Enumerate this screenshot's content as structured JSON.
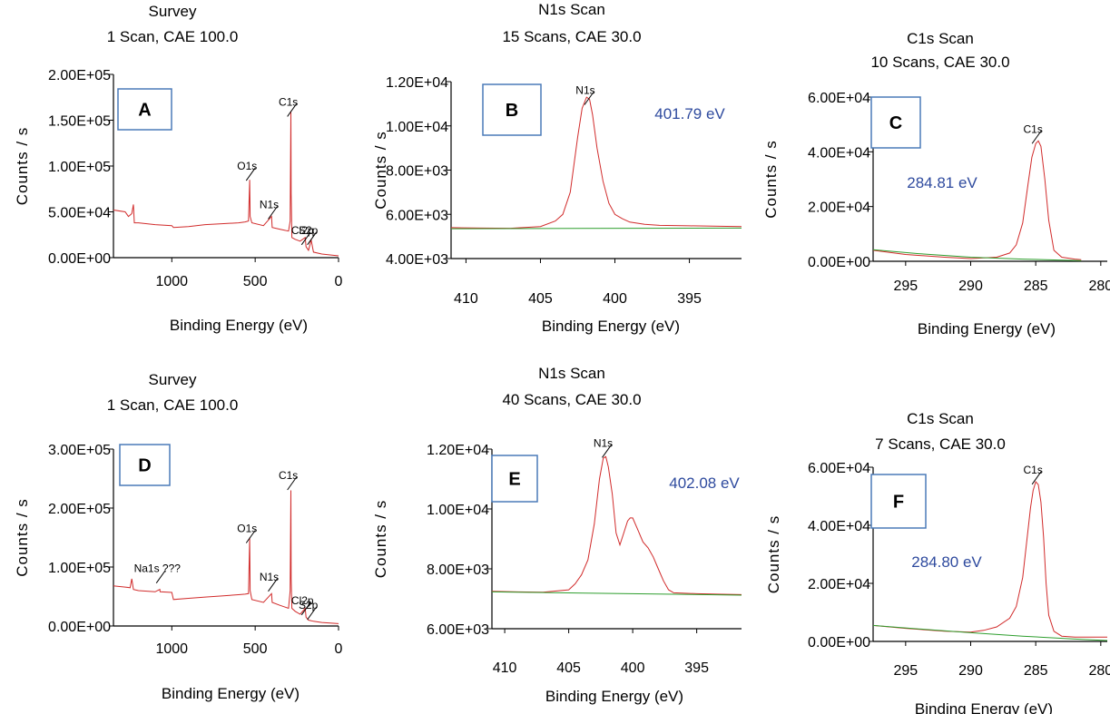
{
  "chart_data": [
    {
      "panel": "A",
      "type": "line",
      "title": "Survey",
      "subtitle": "1 Scan,  CAE 100.0",
      "xlabel": "Binding Energy (eV)",
      "ylabel": "Counts / s",
      "xlim": [
        1350,
        0
      ],
      "ylim": [
        0,
        200000
      ],
      "xticks": [
        "1000",
        "500",
        "0"
      ],
      "yticks": [
        "0.00E+00",
        "5.00E+04",
        "1.00E+05",
        "1.50E+05",
        "2.00E+05"
      ],
      "peak_labels": [
        {
          "text": "C1s",
          "x": 285,
          "y": 160000
        },
        {
          "text": "O1s",
          "x": 532,
          "y": 90000
        },
        {
          "text": "N1s",
          "x": 400,
          "y": 48000
        },
        {
          "text": "Cl2p",
          "x": 200,
          "y": 20000
        },
        {
          "text": "S2p",
          "x": 165,
          "y": 20000
        }
      ],
      "annotation": "",
      "series": [
        {
          "x": [
            1350,
            1280,
            1260,
            1240,
            1230,
            1225,
            1200,
            1100,
            1000,
            990,
            900,
            800,
            700,
            600,
            560,
            540,
            533,
            530,
            520,
            450,
            402,
            398,
            350,
            300,
            290,
            286,
            284,
            280,
            260,
            230,
            200,
            195,
            180,
            170,
            165,
            150,
            100,
            50,
            0
          ],
          "values": [
            52000,
            50000,
            45000,
            48000,
            58000,
            38000,
            38000,
            36000,
            35000,
            33000,
            34000,
            36000,
            37000,
            38000,
            39000,
            40000,
            85000,
            45000,
            38000,
            35000,
            45000,
            33000,
            31000,
            29000,
            40000,
            160000,
            70000,
            22000,
            20000,
            18000,
            22000,
            12000,
            8000,
            15000,
            20000,
            6000,
            4000,
            3000,
            2000
          ]
        }
      ]
    },
    {
      "panel": "B",
      "type": "line",
      "title": "N1s Scan",
      "subtitle": "15 Scans,  CAE 30.0",
      "xlabel": "Binding Energy (eV)",
      "ylabel": "Counts / s",
      "xlim": [
        411,
        391.5
      ],
      "ylim": [
        4000,
        12000
      ],
      "xticks": [
        "410",
        "405",
        "400",
        "395"
      ],
      "yticks": [
        "4.00E+03",
        "6.00E+03",
        "8.00E+03",
        "1.00E+04",
        "1.20E+04"
      ],
      "peak_labels": [
        {
          "text": "N1s",
          "x": 401.8,
          "y": 11200
        }
      ],
      "annotation": "401.79 eV",
      "series": [
        {
          "x": [
            411,
            409,
            407,
            405,
            404,
            403.5,
            403,
            402.5,
            402.2,
            401.9,
            401.7,
            401.5,
            401.2,
            400.8,
            400.4,
            400,
            399.5,
            399,
            398,
            397,
            395,
            393,
            391.5
          ],
          "values": [
            5400,
            5380,
            5370,
            5450,
            5700,
            6000,
            7000,
            9500,
            10800,
            11300,
            11200,
            10500,
            9000,
            7500,
            6500,
            6000,
            5800,
            5650,
            5550,
            5500,
            5480,
            5460,
            5450
          ]
        },
        {
          "x": [
            411,
            391.5
          ],
          "values": [
            5350,
            5380
          ]
        }
      ]
    },
    {
      "panel": "C",
      "type": "line",
      "title": "C1s Scan",
      "subtitle": "10 Scans,  CAE 30.0",
      "xlabel": "Binding Energy (eV)",
      "ylabel": "Counts / s",
      "xlim": [
        297.5,
        279.5
      ],
      "ylim": [
        0,
        60000
      ],
      "xticks": [
        "295",
        "290",
        "285",
        "280"
      ],
      "yticks": [
        "0.00E+00",
        "2.00E+04",
        "4.00E+04",
        "6.00E+04"
      ],
      "peak_labels": [
        {
          "text": "C1s",
          "x": 285,
          "y": 45000
        }
      ],
      "annotation": "284.81 eV",
      "series": [
        {
          "x": [
            297.5,
            295,
            292,
            290,
            288,
            287,
            286.5,
            286,
            285.6,
            285.3,
            285,
            284.8,
            284.6,
            284.3,
            284,
            283.6,
            283,
            282,
            281.5
          ],
          "values": [
            4000,
            2500,
            1500,
            1000,
            1500,
            3000,
            6000,
            14000,
            28000,
            38000,
            43000,
            44000,
            42000,
            30000,
            15000,
            4000,
            1500,
            800,
            600
          ]
        },
        {
          "x": [
            297.5,
            294,
            290,
            286,
            282,
            281.5
          ],
          "values": [
            4200,
            2800,
            1500,
            800,
            300,
            200
          ]
        }
      ]
    },
    {
      "panel": "D",
      "type": "line",
      "title": "Survey",
      "subtitle": "1 Scan,  CAE 100.0",
      "xlabel": "Binding Energy (eV)",
      "ylabel": "Counts / s",
      "xlim": [
        1350,
        0
      ],
      "ylim": [
        0,
        300000
      ],
      "xticks": [
        "1000",
        "500",
        "0"
      ],
      "yticks": [
        "0.00E+00",
        "1.00E+05",
        "2.00E+05",
        "3.00E+05"
      ],
      "peak_labels": [
        {
          "text": "C1s",
          "x": 285,
          "y": 240000
        },
        {
          "text": "O1s",
          "x": 532,
          "y": 150000
        },
        {
          "text": "N1s",
          "x": 400,
          "y": 68000
        },
        {
          "text": "Na1s ???",
          "x": 1071,
          "y": 82000
        },
        {
          "text": "Cl2p",
          "x": 200,
          "y": 28000
        },
        {
          "text": "S2p",
          "x": 165,
          "y": 20000
        }
      ],
      "annotation": "",
      "series": [
        {
          "x": [
            1350,
            1280,
            1250,
            1240,
            1230,
            1200,
            1100,
            1072,
            1070,
            1000,
            990,
            900,
            800,
            700,
            600,
            560,
            540,
            533,
            530,
            520,
            450,
            402,
            398,
            350,
            300,
            290,
            286,
            284,
            280,
            260,
            230,
            200,
            195,
            180,
            150,
            100,
            50,
            0
          ],
          "values": [
            68000,
            66000,
            65000,
            80000,
            62000,
            60000,
            58000,
            62000,
            58000,
            57000,
            45000,
            47000,
            49000,
            51000,
            53000,
            54000,
            55000,
            150000,
            60000,
            45000,
            40000,
            55000,
            40000,
            35000,
            30000,
            60000,
            230000,
            80000,
            30000,
            25000,
            20000,
            30000,
            15000,
            10000,
            8000,
            6000,
            5000,
            4000
          ]
        }
      ]
    },
    {
      "panel": "E",
      "type": "line",
      "title": "N1s Scan",
      "subtitle": "40 Scans,  CAE 30.0",
      "xlabel": "Binding Energy (eV)",
      "ylabel": "Counts / s",
      "xlim": [
        411,
        391.5
      ],
      "ylim": [
        6000,
        12000
      ],
      "xticks": [
        "410",
        "405",
        "400",
        "395"
      ],
      "yticks": [
        "6.00E+03",
        "8.00E+03",
        "1.00E+04",
        "1.20E+04"
      ],
      "peak_labels": [
        {
          "text": "N1s",
          "x": 402.1,
          "y": 11900
        }
      ],
      "annotation": "402.08 eV",
      "series": [
        {
          "x": [
            411,
            409,
            407,
            405,
            404.5,
            404,
            403.5,
            403,
            402.6,
            402.3,
            402.1,
            401.9,
            401.6,
            401.3,
            401,
            400.7,
            400.4,
            400.2,
            400,
            399.6,
            399.2,
            398.8,
            398.4,
            398,
            397.6,
            397.2,
            396.8,
            395,
            393,
            391.5
          ],
          "values": [
            7250,
            7230,
            7220,
            7300,
            7500,
            7800,
            8300,
            9500,
            11000,
            11700,
            11750,
            11400,
            10500,
            9200,
            8800,
            9200,
            9600,
            9700,
            9700,
            9300,
            8900,
            8700,
            8400,
            8000,
            7600,
            7300,
            7200,
            7170,
            7150,
            7140
          ]
        },
        {
          "x": [
            411,
            391.5
          ],
          "values": [
            7230,
            7120
          ]
        }
      ]
    },
    {
      "panel": "F",
      "type": "line",
      "title": "C1s Scan",
      "subtitle": "7 Scans,  CAE 30.0",
      "xlabel": "Binding Energy (eV)",
      "ylabel": "Counts / s",
      "xlim": [
        297.5,
        279.5
      ],
      "ylim": [
        0,
        60000
      ],
      "xticks": [
        "295",
        "290",
        "285",
        "280"
      ],
      "yticks": [
        "0.00E+00",
        "2.00E+04",
        "4.00E+04",
        "6.00E+04"
      ],
      "peak_labels": [
        {
          "text": "C1s",
          "x": 285,
          "y": 56000
        }
      ],
      "annotation": "284.80 eV",
      "series": [
        {
          "x": [
            297.5,
            295,
            292,
            290,
            289,
            288,
            287,
            286.5,
            286,
            285.7,
            285.4,
            285.2,
            285,
            284.8,
            284.6,
            284.4,
            284.2,
            284,
            283.6,
            283,
            282,
            281,
            279.5
          ],
          "values": [
            5500,
            4500,
            3500,
            3200,
            3800,
            5000,
            8000,
            12000,
            22000,
            34000,
            46000,
            52000,
            55000,
            54000,
            48000,
            36000,
            20000,
            9000,
            3500,
            1800,
            1500,
            1500,
            1500
          ]
        },
        {
          "x": [
            297.5,
            294,
            290,
            286,
            282,
            279.5
          ],
          "values": [
            5500,
            4300,
            3000,
            1800,
            800,
            300
          ]
        }
      ]
    }
  ]
}
